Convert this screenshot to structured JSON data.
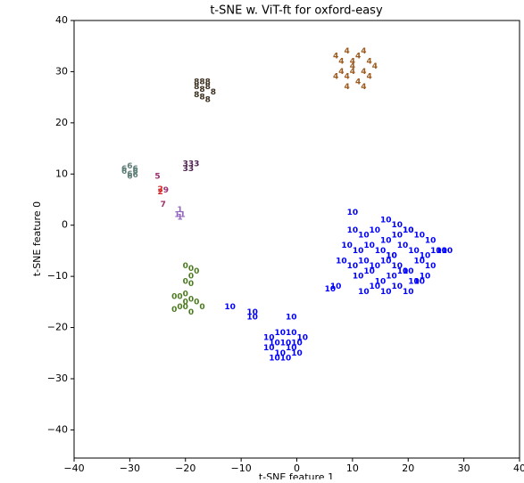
{
  "chart_data": {
    "type": "scatter",
    "title": "t-SNE w. ViT-ft for oxford-easy",
    "xlabel": "t-SNE feature 1",
    "ylabel": "t-SNE feature 0",
    "xlim": [
      -40,
      40
    ],
    "ylim": [
      -45.5,
      40
    ],
    "xticks": [
      {
        "value": -40,
        "label": "−40"
      },
      {
        "value": -30,
        "label": "−30"
      },
      {
        "value": -20,
        "label": "−20"
      },
      {
        "value": -10,
        "label": "−10"
      },
      0,
      10,
      20,
      30,
      40
    ],
    "yticks": [
      {
        "value": -40,
        "label": "−40"
      },
      {
        "value": -30,
        "label": "−30"
      },
      {
        "value": -20,
        "label": "−20"
      },
      {
        "value": -10,
        "label": "−10"
      },
      0,
      10,
      20,
      30,
      40
    ],
    "series": [
      {
        "name": "10",
        "color": "#0000ff",
        "x": [
          10,
          12,
          14,
          16,
          18,
          20,
          22,
          24,
          26,
          9,
          11,
          13,
          15,
          17,
          19,
          21,
          23,
          25,
          27,
          8,
          10,
          12,
          14,
          16,
          18,
          20,
          22,
          24,
          11,
          13,
          15,
          17,
          19,
          21,
          23,
          14,
          16,
          18,
          20,
          22,
          12,
          17,
          10,
          7,
          6,
          -12,
          -8,
          -8,
          -1,
          -3,
          -5,
          -1,
          1,
          -4,
          -2,
          0,
          -5,
          -3,
          -1,
          -2,
          0,
          -4,
          16,
          18,
          20
        ],
        "y": [
          -1,
          -2,
          -1,
          -3,
          -2,
          -1,
          -2,
          -3,
          -5,
          -4,
          -5,
          -4,
          -5,
          -6,
          -4,
          -5,
          -6,
          -5,
          -5,
          -7,
          -8,
          -7,
          -8,
          -7,
          -8,
          -9,
          -7,
          -8,
          -10,
          -9,
          -11,
          -10,
          -9,
          -11,
          -10,
          -12,
          -13,
          -12,
          -13,
          -11,
          -13,
          -6,
          2.5,
          -12,
          -12.5,
          -16,
          -17,
          -18,
          -18,
          -21,
          -22,
          -21,
          -22,
          -23,
          -23,
          -23,
          -24,
          -25,
          -24,
          -26,
          -25,
          -26,
          1,
          0,
          -1
        ]
      },
      {
        "name": "4",
        "color": "#9c5a1f",
        "x": [
          7,
          8,
          9,
          10,
          11,
          12,
          13,
          8,
          10,
          12,
          14,
          9,
          11,
          13,
          7,
          10,
          12,
          9
        ],
        "y": [
          33,
          32,
          34,
          32,
          33,
          34,
          32,
          30,
          31,
          30,
          31,
          29,
          28,
          29,
          29,
          30,
          27,
          27
        ]
      },
      {
        "name": "8",
        "color": "#3b3020",
        "x": [
          -18,
          -17,
          -16,
          -18,
          -17,
          -16,
          -15,
          -17,
          -16,
          -18
        ],
        "y": [
          28,
          28,
          28,
          27,
          26.5,
          27,
          26,
          25,
          24.5,
          25.5
        ]
      },
      {
        "name": "0",
        "color": "#4b7a1f",
        "x": [
          -20,
          -19,
          -18,
          -19,
          -20,
          -19,
          -22,
          -21,
          -20,
          -19,
          -18,
          -21,
          -20,
          -19,
          -22,
          -17,
          -20
        ],
        "y": [
          -8,
          -8.5,
          -9,
          -10,
          -11,
          -11.5,
          -14,
          -14,
          -13.5,
          -14.5,
          -15,
          -16,
          -16,
          -17,
          -16.5,
          -16,
          -15
        ]
      },
      {
        "name": "6",
        "color": "#5f7f78",
        "x": [
          -30,
          -29,
          -31,
          -30,
          -29,
          -31,
          -30,
          -29
        ],
        "y": [
          11.5,
          11,
          10.5,
          10,
          10.5,
          11,
          9.5,
          9.8
        ]
      },
      {
        "name": "3",
        "color": "#4b1f4b",
        "x": [
          -20,
          -19,
          -18,
          -19,
          -20
        ],
        "y": [
          12,
          12,
          12,
          11,
          11
        ]
      },
      {
        "name": "5",
        "color": "#9b2d6e",
        "x": [
          -25
        ],
        "y": [
          9.5
        ]
      },
      {
        "name": "2",
        "color": "#d62728",
        "x": [
          -24.5,
          -24.5
        ],
        "y": [
          7,
          6.5
        ]
      },
      {
        "name": "9",
        "color": "#9b2d6e",
        "x": [
          -23.5
        ],
        "y": [
          6.8
        ]
      },
      {
        "name": "7",
        "color": "#a0306a",
        "x": [
          -24
        ],
        "y": [
          4
        ]
      },
      {
        "name": "1",
        "color": "#9467bd",
        "x": [
          -21,
          -21.5,
          -20.5,
          -21
        ],
        "y": [
          3,
          2,
          2,
          1.5
        ]
      }
    ]
  }
}
